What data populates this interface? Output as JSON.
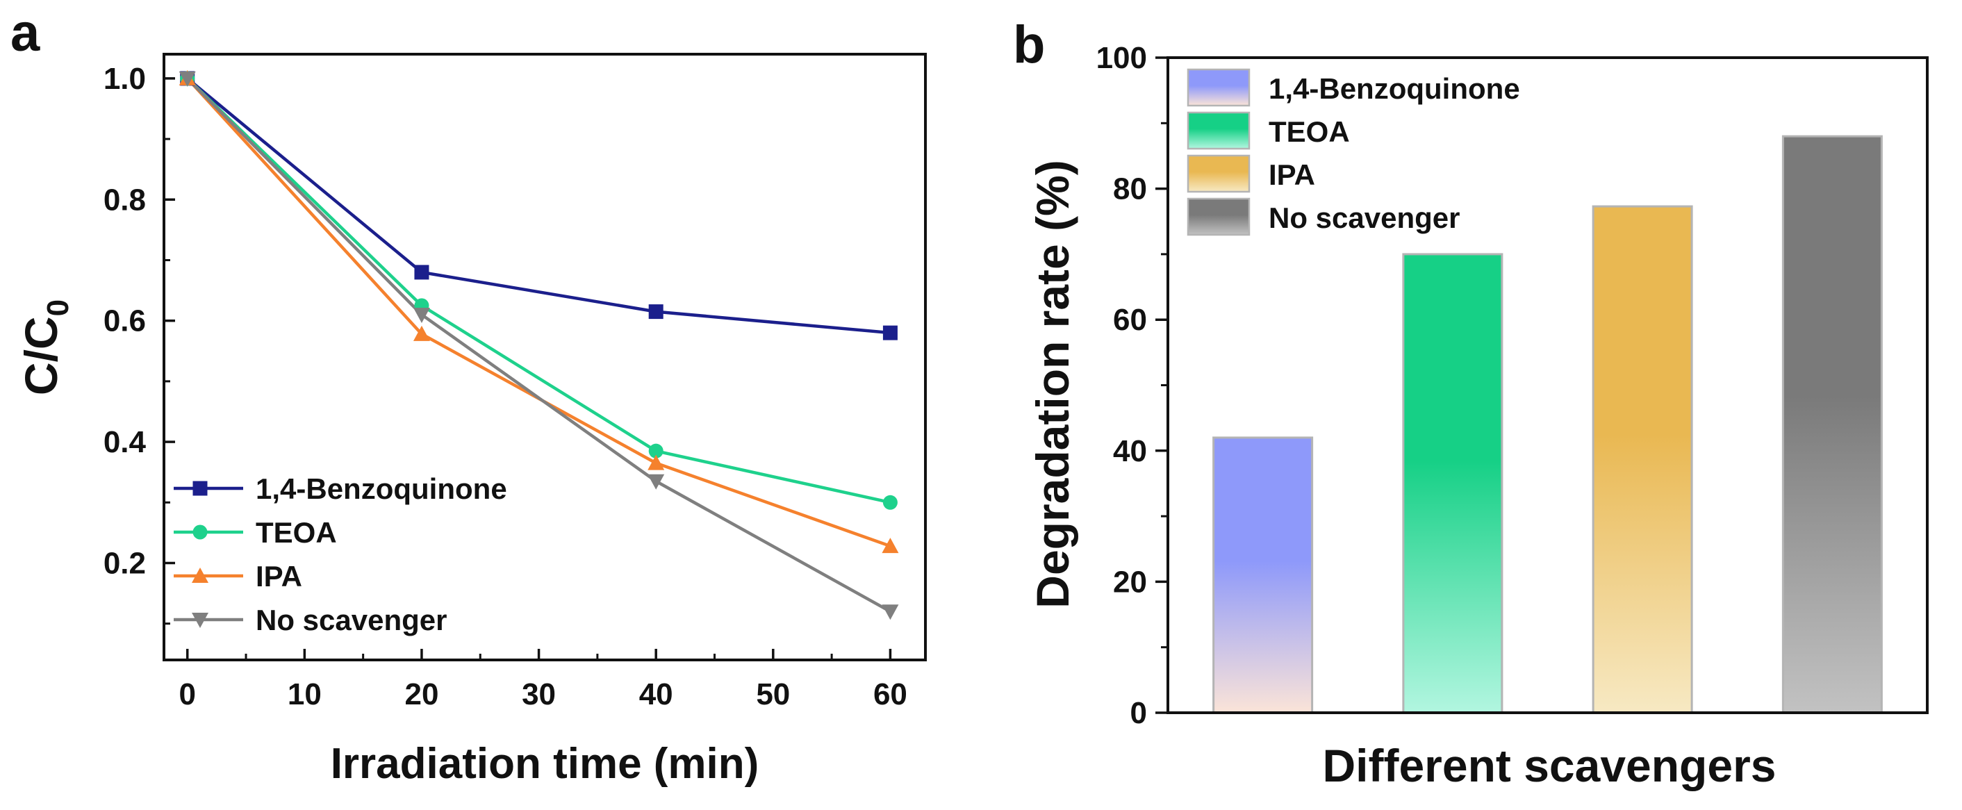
{
  "panels": {
    "a": {
      "label": "a"
    },
    "b": {
      "label": "b"
    }
  },
  "chart_data": [
    {
      "type": "line",
      "panel": "a",
      "xlabel": "Irradiation time (min)",
      "ylabel_main": "C/C",
      "ylabel_sub": "0",
      "x": [
        0,
        20,
        40,
        60
      ],
      "xlim": [
        -2,
        63
      ],
      "ylim": [
        0.04,
        1.04
      ],
      "xticks": [
        0,
        10,
        20,
        30,
        40,
        50,
        60
      ],
      "xtick_labels": [
        "0",
        "10",
        "20",
        "30",
        "40",
        "50",
        "60"
      ],
      "yticks": [
        0.2,
        0.4,
        0.6,
        0.8,
        1.0
      ],
      "ytick_labels": [
        "0.2",
        "0.4",
        "0.6",
        "0.8",
        "1.0"
      ],
      "legend_position": "bottom-left",
      "series": [
        {
          "name": "1,4-Benzoquinone",
          "values": [
            1.0,
            0.68,
            0.615,
            0.58
          ],
          "color": "#1b1f8c",
          "marker": "square"
        },
        {
          "name": "TEOA",
          "values": [
            1.0,
            0.625,
            0.385,
            0.3
          ],
          "color": "#1ed18c",
          "marker": "circle"
        },
        {
          "name": "IPA",
          "values": [
            1.0,
            0.578,
            0.365,
            0.228
          ],
          "color": "#f5812d",
          "marker": "triangle-up"
        },
        {
          "name": "No scavenger",
          "values": [
            1.0,
            0.61,
            0.335,
            0.12
          ],
          "color": "#7f7f7f",
          "marker": "triangle-down"
        }
      ]
    },
    {
      "type": "bar",
      "panel": "b",
      "xlabel": "Different scavengers",
      "ylabel": "Degradation rate (%)",
      "ylim": [
        0,
        100
      ],
      "yticks": [
        0,
        20,
        40,
        60,
        80,
        100
      ],
      "ytick_labels": [
        "0",
        "20",
        "40",
        "60",
        "80",
        "100"
      ],
      "legend_position": "top-left",
      "categories": [
        "1,4-Benzoquinone",
        "TEOA",
        "IPA",
        "No scavenger"
      ],
      "values": [
        42,
        70,
        77.3,
        88
      ],
      "colors_top": [
        "#8e99fa",
        "#16d086",
        "#e9b852",
        "#7a7a7a"
      ],
      "colors_bottom": [
        "#fbe4d8",
        "#b2f6e0",
        "#f7e9c3",
        "#c2c2c2"
      ]
    }
  ]
}
